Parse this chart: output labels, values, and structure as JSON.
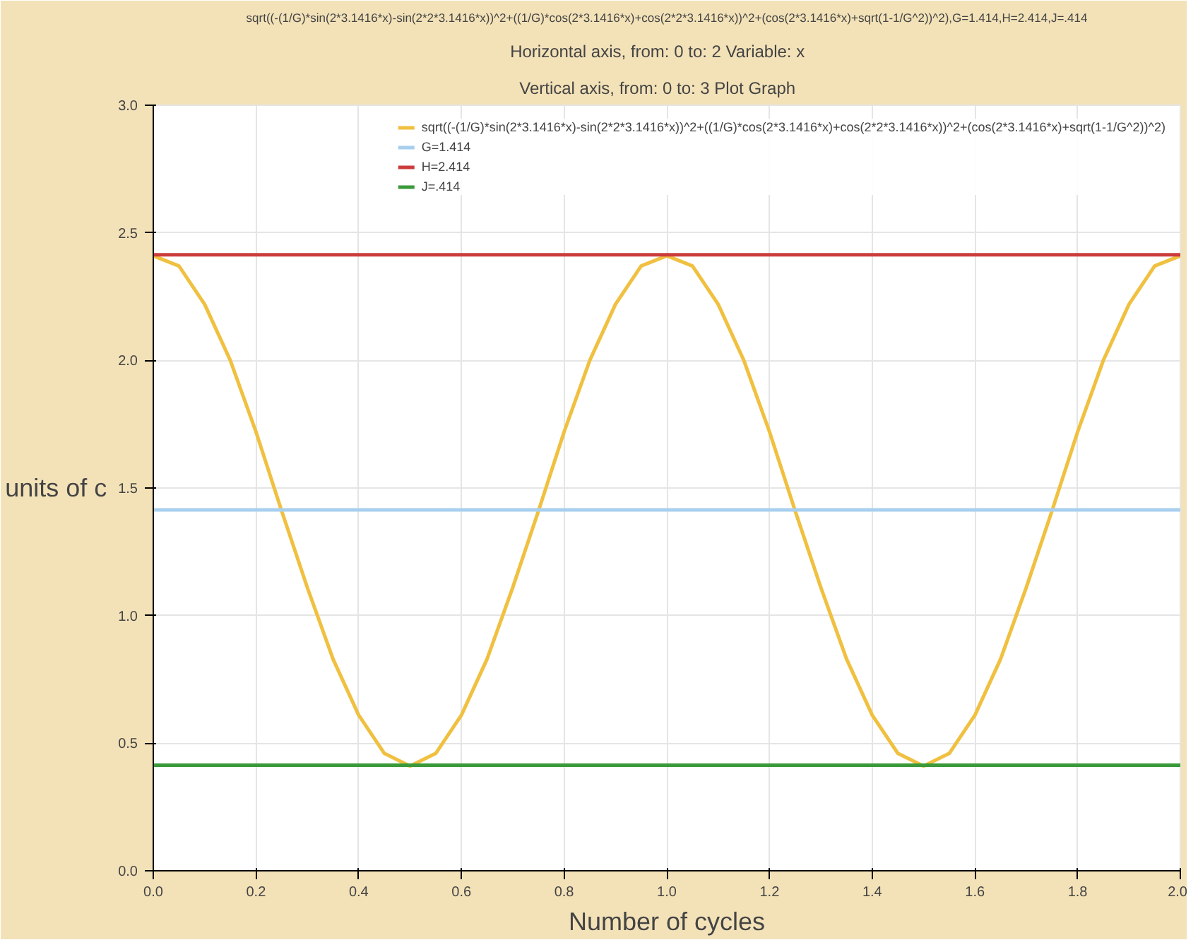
{
  "chart_data": {
    "type": "line",
    "title": "sqrt((-(1/G)*sin(2*3.1416*x)-sin(2*2*3.1416*x))^2+((1/G)*cos(2*3.1416*x)+cos(2*2*3.1416*x))^2+(cos(2*3.1416*x)+sqrt(1-1/G^2))^2),G=1.414,H=2.414,J=.414",
    "annotations": [
      "Horizontal axis, from: 0   to: 2   Variable: x",
      "Vertical axis, from: 0   to: 3   Plot Graph"
    ],
    "xlabel": "Number of cycles",
    "ylabel": "units of c",
    "x": [
      0,
      0.05,
      0.1,
      0.15,
      0.2,
      0.25,
      0.3,
      0.35,
      0.4,
      0.45,
      0.5,
      0.55,
      0.6,
      0.65,
      0.7,
      0.75,
      0.8,
      0.85,
      0.9,
      0.95,
      1,
      1.05,
      1.1,
      1.15,
      1.2,
      1.25,
      1.3,
      1.35,
      1.4,
      1.45,
      1.5,
      1.55,
      1.6,
      1.65,
      1.7,
      1.75,
      1.8,
      1.85,
      1.9,
      1.95,
      2
    ],
    "series": [
      {
        "name": "sqrt((-(1/G)*sin(2*3.1416*x)-sin(2*2*3.1416*x))^2+((1/G)*cos(2*3.1416*x)+cos(2*2*3.1416*x))^2+(cos(2*3.1416*x)+sqrt(1-1/G^2))^2)",
        "color": "#f0c040",
        "values": [
          2.41,
          2.37,
          2.22,
          2.0,
          1.72,
          1.41,
          1.11,
          0.83,
          0.61,
          0.46,
          0.41,
          0.46,
          0.61,
          0.83,
          1.11,
          1.41,
          1.72,
          2.0,
          2.22,
          2.37,
          2.41,
          2.37,
          2.22,
          2.0,
          1.72,
          1.41,
          1.11,
          0.83,
          0.61,
          0.46,
          0.41,
          0.46,
          0.61,
          0.83,
          1.11,
          1.41,
          1.72,
          2.0,
          2.22,
          2.37,
          2.41
        ]
      },
      {
        "name": "G=1.414",
        "color": "#a8cfee",
        "values": [
          1.414,
          1.414,
          1.414,
          1.414,
          1.414,
          1.414,
          1.414,
          1.414,
          1.414,
          1.414,
          1.414,
          1.414,
          1.414,
          1.414,
          1.414,
          1.414,
          1.414,
          1.414,
          1.414,
          1.414,
          1.414,
          1.414,
          1.414,
          1.414,
          1.414,
          1.414,
          1.414,
          1.414,
          1.414,
          1.414,
          1.414,
          1.414,
          1.414,
          1.414,
          1.414,
          1.414,
          1.414,
          1.414,
          1.414,
          1.414,
          1.414
        ]
      },
      {
        "name": "H=2.414",
        "color": "#cc3c3c",
        "values": [
          2.414,
          2.414,
          2.414,
          2.414,
          2.414,
          2.414,
          2.414,
          2.414,
          2.414,
          2.414,
          2.414,
          2.414,
          2.414,
          2.414,
          2.414,
          2.414,
          2.414,
          2.414,
          2.414,
          2.414,
          2.414,
          2.414,
          2.414,
          2.414,
          2.414,
          2.414,
          2.414,
          2.414,
          2.414,
          2.414,
          2.414,
          2.414,
          2.414,
          2.414,
          2.414,
          2.414,
          2.414,
          2.414,
          2.414,
          2.414,
          2.414
        ]
      },
      {
        "name": "J=.414",
        "color": "#3a9a3a",
        "values": [
          0.414,
          0.414,
          0.414,
          0.414,
          0.414,
          0.414,
          0.414,
          0.414,
          0.414,
          0.414,
          0.414,
          0.414,
          0.414,
          0.414,
          0.414,
          0.414,
          0.414,
          0.414,
          0.414,
          0.414,
          0.414,
          0.414,
          0.414,
          0.414,
          0.414,
          0.414,
          0.414,
          0.414,
          0.414,
          0.414,
          0.414,
          0.414,
          0.414,
          0.414,
          0.414,
          0.414,
          0.414,
          0.414,
          0.414,
          0.414,
          0.414
        ]
      }
    ],
    "xlim": [
      0,
      2
    ],
    "ylim": [
      0,
      3
    ],
    "xticks": [
      {
        "value": 0,
        "label": "0.0"
      },
      {
        "value": 0.2,
        "label": "0.2"
      },
      {
        "value": 0.4,
        "label": "0.4"
      },
      {
        "value": 0.6,
        "label": "0.6"
      },
      {
        "value": 0.8,
        "label": "0.8"
      },
      {
        "value": 1,
        "label": "1.0"
      },
      {
        "value": 1.2,
        "label": "1.2"
      },
      {
        "value": 1.4,
        "label": "1.4"
      },
      {
        "value": 1.6,
        "label": "1.6"
      },
      {
        "value": 1.8,
        "label": "1.8"
      },
      {
        "value": 2,
        "label": "2.0"
      }
    ],
    "yticks": [
      {
        "value": 0,
        "label": "0.0"
      },
      {
        "value": 0.5,
        "label": "0.5"
      },
      {
        "value": 1,
        "label": "1.0"
      },
      {
        "value": 1.5,
        "label": "1.5"
      },
      {
        "value": 2,
        "label": "2.0"
      },
      {
        "value": 2.5,
        "label": "2.5"
      },
      {
        "value": 3,
        "label": "3.0"
      }
    ],
    "grid": true,
    "legend": "top right",
    "marker": "none",
    "line_style": "solid"
  }
}
